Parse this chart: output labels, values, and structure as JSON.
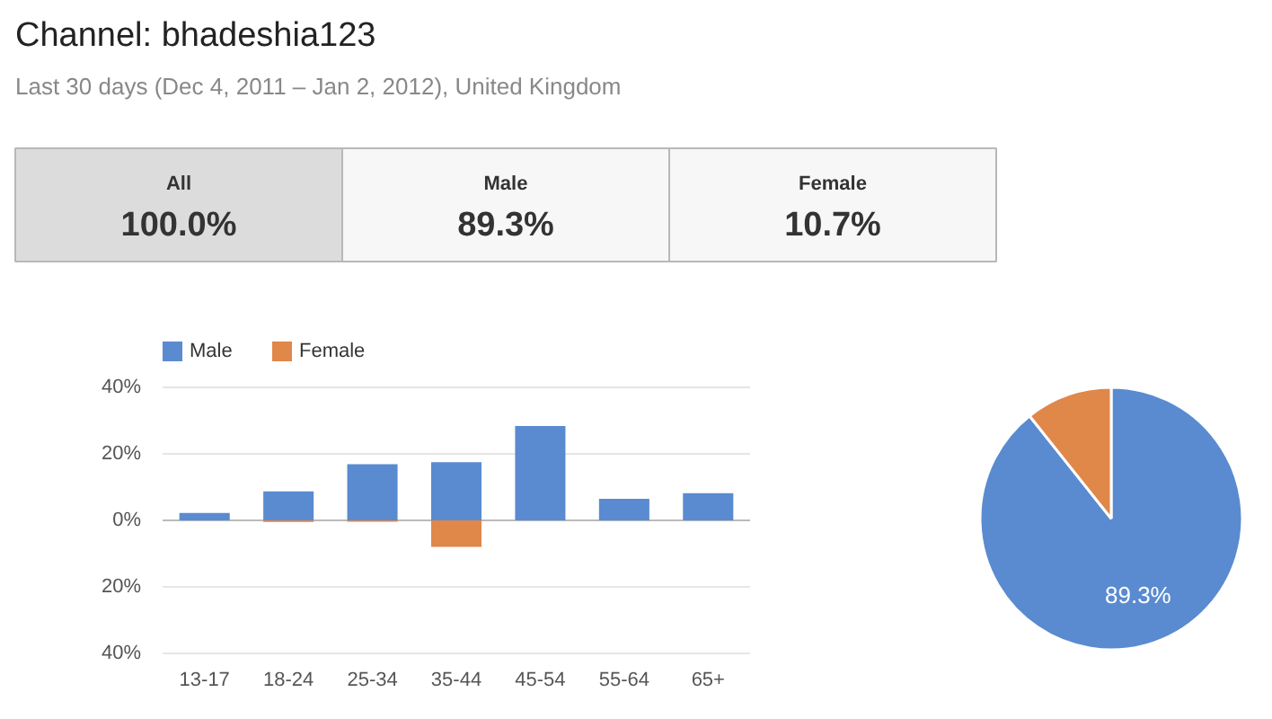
{
  "chart_data": [
    {
      "type": "other",
      "title": "Channel: bhadeshia123",
      "subtitle": "Last 30 days (Dec 4, 2011 – Jan 2, 2012), United Kingdom",
      "annotations": [
        "All",
        "100.0%",
        "Male",
        "89.3%",
        "Female",
        "10.7%"
      ]
    },
    {
      "type": "bar",
      "stacked": true,
      "categories": [
        "13-17",
        "18-24",
        "25-34",
        "35-44",
        "45-54",
        "55-64",
        "65+"
      ],
      "series": [
        {
          "name": "Male",
          "color": "#5a8bd0",
          "values": [
            2.2,
            8.7,
            16.9,
            17.5,
            28.4,
            6.5,
            8.2
          ]
        },
        {
          "name": "Female",
          "color": "#e0874a",
          "values": [
            0,
            -0.5,
            -0.4,
            -8.0,
            0,
            0,
            0
          ]
        }
      ],
      "ylim": [
        -40,
        40
      ],
      "yticks": [
        {
          "value": -40,
          "label": "40%"
        },
        {
          "value": -20,
          "label": "20%"
        },
        {
          "value": 0,
          "label": "0%"
        },
        {
          "value": 20,
          "label": "20%"
        },
        {
          "value": 40,
          "label": "40%"
        }
      ],
      "grid": "y",
      "legend": "top left"
    },
    {
      "type": "pie",
      "categories": [
        null,
        null
      ],
      "values": [
        89.3,
        10.7
      ],
      "colors": [
        "#5a8bd0",
        "#e0874a"
      ],
      "value_labels": [
        "89.3%",
        null
      ]
    }
  ]
}
